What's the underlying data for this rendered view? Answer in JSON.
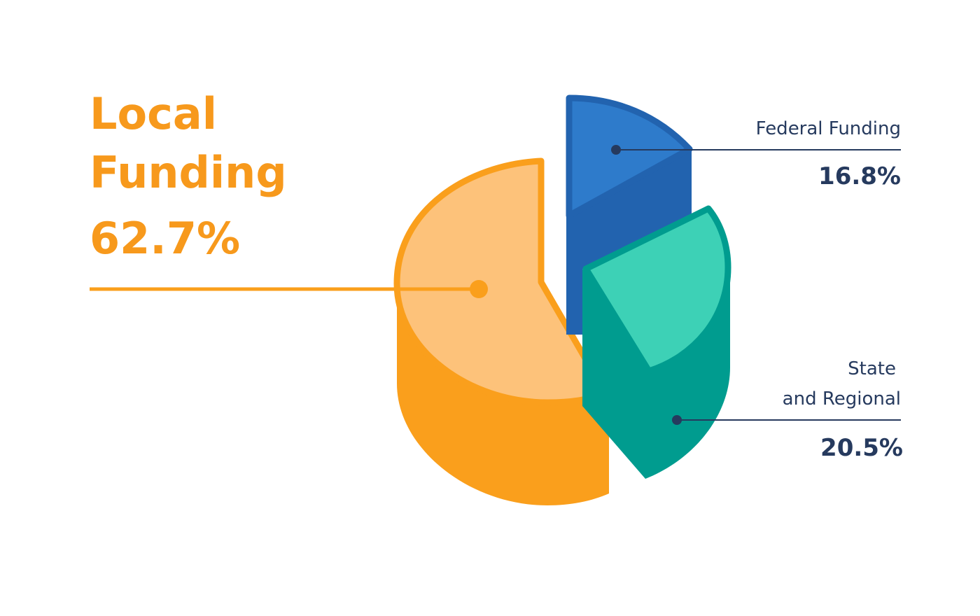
{
  "colors": {
    "local_top": "#FDC27A",
    "local_side": "#FA9F1C",
    "local_text": "#F7991C",
    "federal_top": "#2E7BCB",
    "federal_side": "#2263AF",
    "state_top": "#3DD1B6",
    "state_side": "#009C8F",
    "label_text": "#263A5E",
    "background": "#FFFFFF"
  },
  "chart_data": {
    "type": "pie",
    "style": "3d-exploded",
    "slices": [
      {
        "key": "local",
        "label_lines": [
          "Local",
          "Funding"
        ],
        "value": 62.7,
        "value_text": "62.7%"
      },
      {
        "key": "federal",
        "label_lines": [
          "Federal Funding"
        ],
        "value": 16.8,
        "value_text": "16.8%"
      },
      {
        "key": "state",
        "label_lines": [
          "State",
          "and Regional"
        ],
        "value": 20.5,
        "value_text": "20.5%"
      }
    ]
  }
}
